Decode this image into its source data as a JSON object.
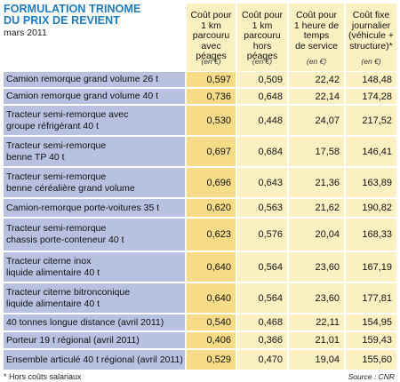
{
  "title_lines": [
    "FORMULATION TRINOME",
    "DU PRIX DE REVIENT"
  ],
  "subtitle": "mars 2011",
  "columns": [
    {
      "lines": [
        "Coût pour",
        "1 km",
        "parcouru",
        "avec péages"
      ],
      "unit": "(en €)"
    },
    {
      "lines": [
        "Coût pour",
        "1 km",
        "parcouru",
        "hors péages"
      ],
      "unit": "(en €)"
    },
    {
      "lines": [
        "Coût pour",
        "1 heure de temps",
        "de service"
      ],
      "unit": "(en €)"
    },
    {
      "lines": [
        "Coût fixe",
        "journalier",
        "(véhicule +",
        "structure)*"
      ],
      "unit": "(en €)"
    }
  ],
  "rows": [
    {
      "label": [
        "Camion remorque grand volume 26 t"
      ],
      "values": [
        "0,597",
        "0,509",
        "22,42",
        "148,48"
      ]
    },
    {
      "label": [
        "Camion remorque grand volume 40 t"
      ],
      "values": [
        "0,736",
        "0,648",
        "22,14",
        "174,28"
      ]
    },
    {
      "label": [
        "Tracteur semi-remorque avec",
        "groupe réfrigérant 40 t"
      ],
      "values": [
        "0,530",
        "0,448",
        "24,07",
        "217,52"
      ]
    },
    {
      "label": [
        "Tracteur semi-remorque",
        "benne TP 40 t"
      ],
      "values": [
        "0,697",
        "0,684",
        "17,58",
        "146,41"
      ]
    },
    {
      "label": [
        "Tracteur semi-remorque",
        "benne céréalière grand volume"
      ],
      "values": [
        "0,696",
        "0,643",
        "21,36",
        "163,89"
      ]
    },
    {
      "label": [
        "Camion-remorque porte-voitures 35 t"
      ],
      "values": [
        "0,620",
        "0,563",
        "21,62",
        "190,82"
      ]
    },
    {
      "label": [
        "Tracteur semi-remorque",
        "chassis porte-conteneur 40 t"
      ],
      "values": [
        "0,623",
        "0,576",
        "20,04",
        "168,33"
      ]
    },
    {
      "label": [
        "Tracteur citerne inox",
        "liquide alimentaire 40 t"
      ],
      "values": [
        "0,640",
        "0,564",
        "23,60",
        "167,19"
      ]
    },
    {
      "label": [
        "Tracteur citerne bitronconique",
        "liquide alimentaire 40 t"
      ],
      "values": [
        "0,640",
        "0,564",
        "23,60",
        "177,81"
      ]
    },
    {
      "label": [
        "40 tonnes longue distance (avril 2011)"
      ],
      "values": [
        "0,540",
        "0,468",
        "22,11",
        "154,95"
      ]
    },
    {
      "label": [
        "Porteur 19 t régional (avril 2011)"
      ],
      "values": [
        "0,406",
        "0,366",
        "21,01",
        "159,43"
      ]
    },
    {
      "label": [
        "Ensemble articulé 40 t régional (avril 2011)"
      ],
      "values": [
        "0,529",
        "0,470",
        "19,04",
        "155,60"
      ]
    }
  ],
  "footnote": "* Hors coûts salariaux",
  "source": "Source : CNR",
  "colors": {
    "title": "#1d7bbf",
    "label_bg": "#b8c1e0",
    "highlight_col_bg": "#f6dc86",
    "cell_bg": "#fbf0c2"
  }
}
